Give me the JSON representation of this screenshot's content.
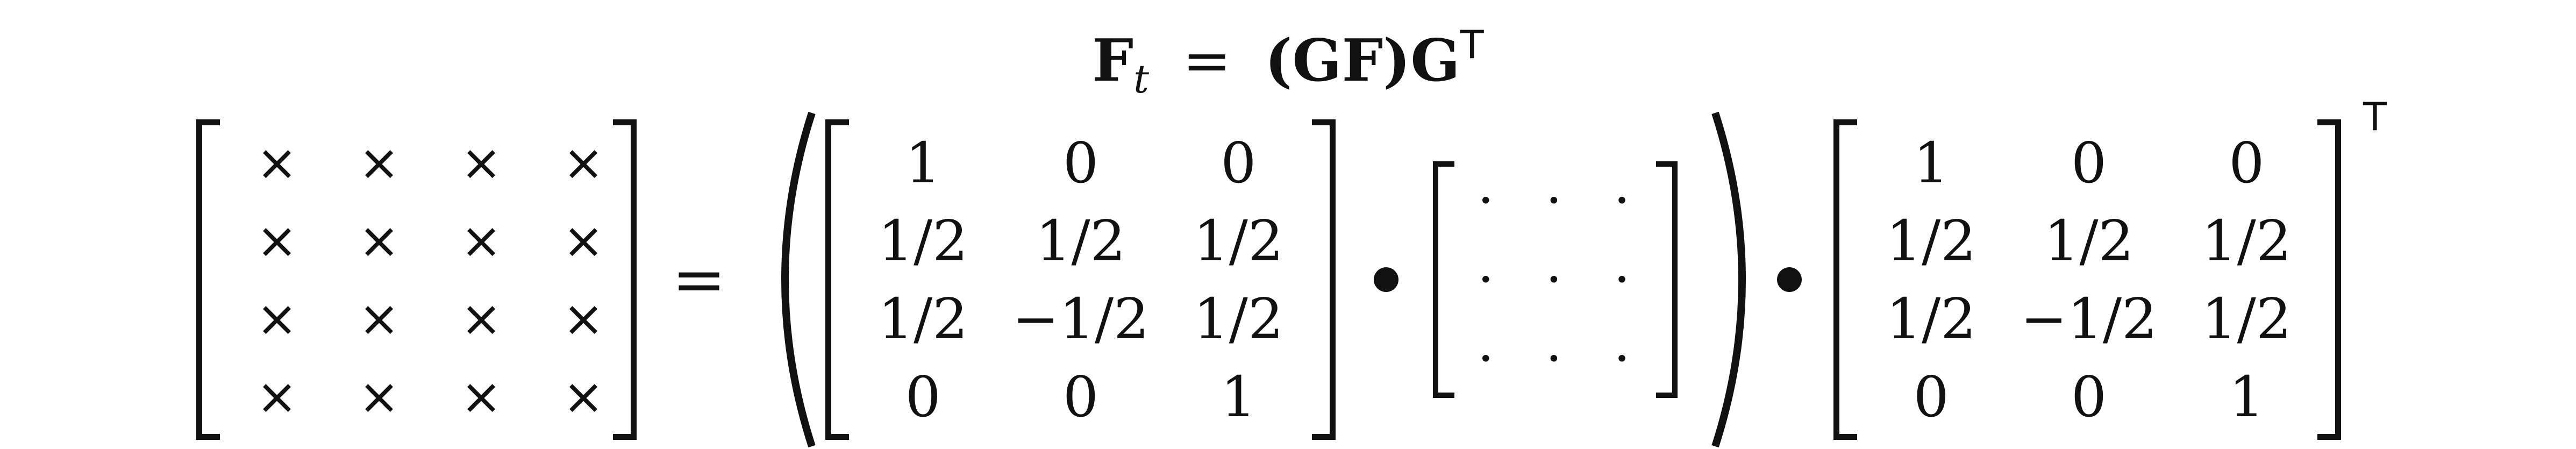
{
  "title": {
    "lhs": "F",
    "lhs_sub": "t",
    "equals": "=",
    "rhs_open": "(",
    "rhs_g": "G",
    "rhs_f": "F",
    "rhs_close": ")",
    "rhs_g2": "G",
    "rhs_sup": "T"
  },
  "result_matrix": {
    "rows": [
      [
        "×",
        "×",
        "×",
        "×"
      ],
      [
        "×",
        "×",
        "×",
        "×"
      ],
      [
        "×",
        "×",
        "×",
        "×"
      ],
      [
        "×",
        "×",
        "×",
        "×"
      ]
    ]
  },
  "equals_sign": "=",
  "g_matrix": {
    "rows": [
      [
        "1",
        "0",
        "0"
      ],
      [
        "1/2",
        "1/2",
        "1/2"
      ],
      [
        "1/2",
        "−1/2",
        "1/2"
      ],
      [
        "0",
        "0",
        "1"
      ]
    ]
  },
  "f_matrix": {
    "rows": [
      [
        "·",
        "·",
        "·"
      ],
      [
        "·",
        "·",
        "·"
      ],
      [
        "·",
        "·",
        "·"
      ]
    ]
  },
  "gt_matrix": {
    "rows": [
      [
        "1",
        "0",
        "0"
      ],
      [
        "1/2",
        "1/2",
        "1/2"
      ],
      [
        "1/2",
        "−1/2",
        "1/2"
      ],
      [
        "0",
        "0",
        "1"
      ]
    ]
  },
  "transpose_symbol": "T"
}
